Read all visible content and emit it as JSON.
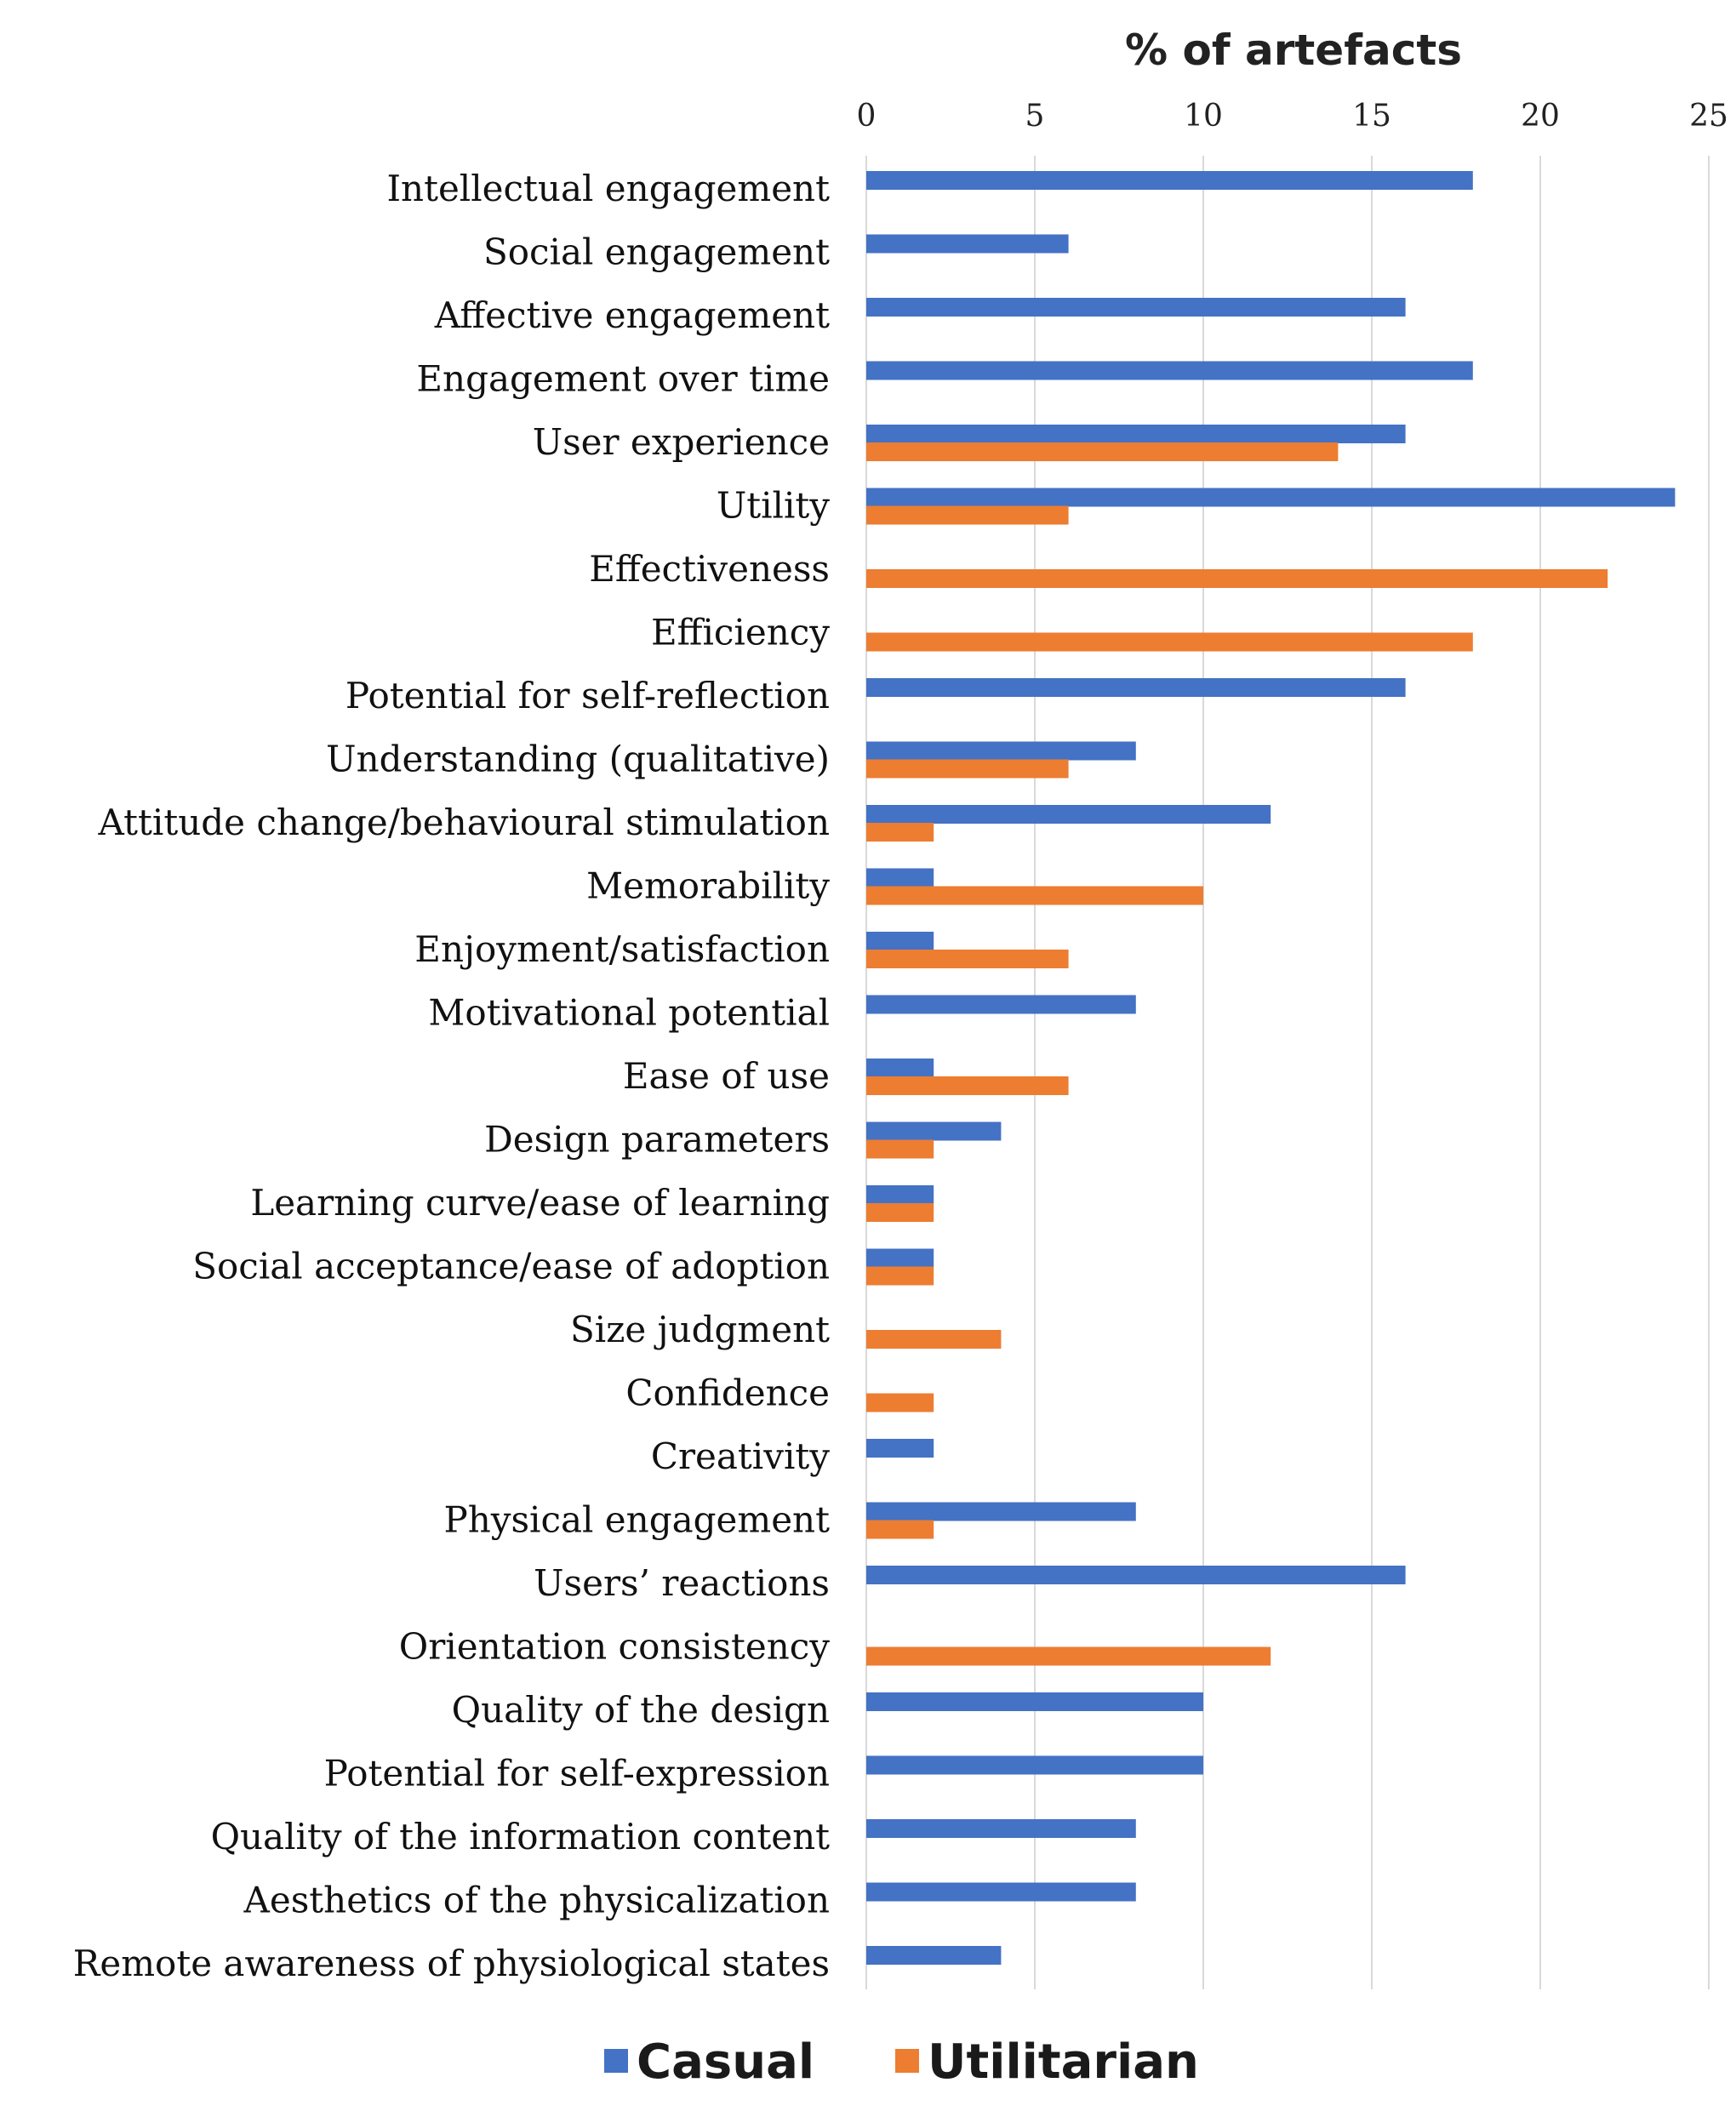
{
  "chart_data": {
    "type": "bar",
    "orientation": "horizontal",
    "title": "% of artefacts",
    "xlabel": "% of artefacts",
    "ylabel": "",
    "xlim": [
      0,
      25
    ],
    "x_ticks": [
      0,
      5,
      10,
      15,
      20,
      25
    ],
    "grid": true,
    "legend_position": "bottom",
    "categories": [
      "Intellectual engagement",
      "Social engagement",
      "Affective engagement",
      "Engagement over time",
      "User experience",
      "Utility",
      "Effectiveness",
      "Efficiency",
      "Potential for self-reflection",
      "Understanding (qualitative)",
      "Attitude change/behavioural stimulation",
      "Memorability",
      "Enjoyment/satisfaction",
      "Motivational potential",
      "Ease of use",
      "Design parameters",
      "Learning curve/ease of learning",
      "Social acceptance/ease of adoption",
      "Size judgment",
      "Confidence",
      "Creativity",
      "Physical engagement",
      "Users’ reactions",
      "Orientation consistency",
      "Quality of the design",
      "Potential for self-expression",
      "Quality of the information content",
      "Aesthetics of the physicalization",
      "Remote awareness of physiological states"
    ],
    "series": [
      {
        "name": "Casual",
        "color": "#4472C4",
        "values": [
          18,
          6,
          16,
          18,
          16,
          24,
          0,
          0,
          16,
          8,
          12,
          2,
          2,
          8,
          2,
          4,
          2,
          2,
          0,
          0,
          2,
          8,
          16,
          0,
          10,
          10,
          8,
          8,
          4
        ]
      },
      {
        "name": "Utilitarian",
        "color": "#ED7D31",
        "values": [
          0,
          0,
          0,
          0,
          14,
          6,
          22,
          18,
          0,
          6,
          2,
          10,
          6,
          0,
          6,
          2,
          2,
          2,
          4,
          2,
          0,
          2,
          0,
          12,
          0,
          0,
          0,
          0,
          0
        ]
      }
    ]
  }
}
